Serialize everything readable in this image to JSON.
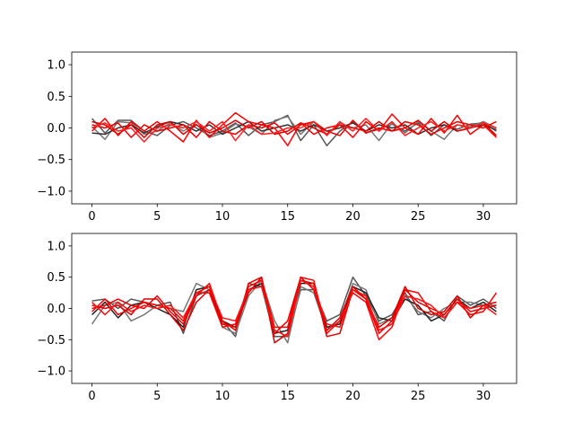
{
  "chart_data": [
    {
      "type": "line",
      "title": "",
      "xlabel": "",
      "ylabel": "",
      "xlim": [
        -1.55,
        32.55
      ],
      "ylim": [
        -1.2,
        1.2
      ],
      "xticks": [
        0,
        5,
        10,
        15,
        20,
        25,
        30
      ],
      "yticks": [
        -1.0,
        -0.5,
        0.0,
        0.5,
        1.0
      ],
      "xtick_labels": [
        "0",
        "5",
        "10",
        "15",
        "20",
        "25",
        "30"
      ],
      "ytick_labels": [
        "−1.0",
        "−0.5",
        "0.0",
        "0.5",
        "1.0"
      ],
      "grid": false,
      "x": [
        0,
        1,
        2,
        3,
        4,
        5,
        6,
        7,
        8,
        9,
        10,
        11,
        12,
        13,
        14,
        15,
        16,
        17,
        18,
        19,
        20,
        21,
        22,
        23,
        24,
        25,
        26,
        27,
        28,
        29,
        30,
        31
      ],
      "series": [
        {
          "color": "#555555",
          "values": [
            0.15,
            -0.08,
            0.12,
            0.12,
            -0.05,
            -0.12,
            0.04,
            0.1,
            0.0,
            -0.12,
            -0.05,
            0.08,
            -0.12,
            0.05,
            0.1,
            0.2,
            -0.2,
            0.05,
            -0.28,
            -0.05,
            0.1,
            -0.08,
            -0.02,
            0.06,
            -0.05,
            0.08,
            -0.12,
            0.05,
            -0.02,
            0.06,
            0.08,
            -0.05
          ]
        },
        {
          "color": "#777777",
          "values": [
            0.02,
            -0.18,
            0.1,
            0.08,
            -0.1,
            -0.05,
            0.08,
            -0.05,
            0.06,
            -0.15,
            -0.08,
            0.06,
            0.02,
            -0.1,
            0.12,
            0.18,
            -0.1,
            0.1,
            -0.1,
            0.08,
            0.0,
            0.05,
            -0.2,
            0.08,
            -0.08,
            0.1,
            -0.05,
            -0.18,
            0.05,
            0.02,
            0.1,
            0.0
          ]
        },
        {
          "color": "#333333",
          "values": [
            -0.08,
            -0.1,
            0.0,
            0.05,
            -0.08,
            0.02,
            0.1,
            0.05,
            -0.05,
            0.05,
            -0.1,
            0.0,
            0.1,
            -0.05,
            0.0,
            0.05,
            -0.05,
            0.05,
            -0.05,
            0.0,
            0.08,
            -0.05,
            0.05,
            0.0,
            0.05,
            -0.1,
            0.0,
            0.05,
            -0.05,
            0.0,
            0.05,
            -0.03
          ]
        },
        {
          "color": "#dd0000",
          "values": [
            0.1,
            0.05,
            -0.1,
            0.05,
            -0.15,
            0.05,
            0.1,
            -0.1,
            0.05,
            -0.08,
            0.0,
            0.12,
            0.0,
            0.1,
            -0.1,
            -0.05,
            0.08,
            0.0,
            -0.1,
            0.05,
            0.0,
            -0.05,
            0.1,
            -0.05,
            0.0,
            0.12,
            -0.05,
            0.1,
            -0.05,
            0.0,
            0.08,
            -0.12
          ]
        },
        {
          "color": "#ff0000",
          "values": [
            -0.05,
            0.15,
            -0.12,
            0.1,
            -0.05,
            0.1,
            -0.05,
            -0.22,
            0.12,
            -0.15,
            0.05,
            0.24,
            0.1,
            0.05,
            0.0,
            -0.28,
            0.08,
            -0.1,
            0.0,
            0.05,
            -0.15,
            0.1,
            -0.05,
            0.22,
            0.0,
            -0.1,
            0.15,
            -0.08,
            0.2,
            -0.1,
            0.05,
            -0.15
          ]
        },
        {
          "color": "#ee0000",
          "values": [
            0.05,
            0.0,
            0.08,
            -0.15,
            0.05,
            -0.05,
            0.0,
            0.05,
            -0.15,
            0.1,
            -0.05,
            -0.1,
            0.05,
            0.0,
            0.08,
            -0.1,
            0.05,
            0.1,
            -0.05,
            -0.12,
            0.12,
            -0.08,
            0.0,
            -0.05,
            0.1,
            0.05,
            -0.1,
            0.0,
            0.1,
            0.05,
            0.0,
            0.1
          ]
        },
        {
          "color": "#ff2020",
          "values": [
            0.0,
            0.08,
            -0.05,
            0.0,
            -0.22,
            0.0,
            0.05,
            0.0,
            0.1,
            -0.05,
            0.1,
            -0.2,
            0.05,
            -0.1,
            -0.08,
            0.0,
            0.0,
            0.1,
            -0.12,
            0.1,
            -0.05,
            0.15,
            -0.05,
            0.1,
            -0.12,
            0.0,
            0.1,
            -0.05,
            0.05,
            0.0,
            0.08,
            0.0
          ]
        }
      ]
    },
    {
      "type": "line",
      "title": "",
      "xlabel": "",
      "ylabel": "",
      "xlim": [
        -1.55,
        32.55
      ],
      "ylim": [
        -1.2,
        1.2
      ],
      "xticks": [
        0,
        5,
        10,
        15,
        20,
        25,
        30
      ],
      "yticks": [
        -1.0,
        -0.5,
        0.0,
        0.5,
        1.0
      ],
      "xtick_labels": [
        "0",
        "5",
        "10",
        "15",
        "20",
        "25",
        "30"
      ],
      "ytick_labels": [
        "−1.0",
        "−0.5",
        "0.0",
        "0.5",
        "1.0"
      ],
      "grid": false,
      "x": [
        0,
        1,
        2,
        3,
        4,
        5,
        6,
        7,
        8,
        9,
        10,
        11,
        12,
        13,
        14,
        15,
        16,
        17,
        18,
        19,
        20,
        21,
        22,
        23,
        24,
        25,
        26,
        27,
        28,
        29,
        30,
        31
      ],
      "series": [
        {
          "color": "#555555",
          "values": [
            0.12,
            0.15,
            0.0,
            0.15,
            0.1,
            0.05,
            0.1,
            -0.4,
            0.2,
            0.3,
            -0.2,
            -0.45,
            0.4,
            0.35,
            -0.45,
            -0.45,
            0.3,
            0.3,
            -0.2,
            -0.1,
            0.5,
            0.2,
            -0.2,
            -0.1,
            0.25,
            -0.1,
            -0.05,
            -0.2,
            0.2,
            0.05,
            0.15,
            0.0
          ]
        },
        {
          "color": "#777777",
          "values": [
            -0.25,
            0.05,
            0.1,
            -0.2,
            -0.1,
            0.05,
            0.0,
            -0.05,
            0.4,
            0.3,
            -0.3,
            -0.4,
            0.2,
            0.45,
            -0.2,
            -0.55,
            0.35,
            0.25,
            -0.35,
            -0.2,
            0.4,
            0.3,
            -0.25,
            -0.15,
            0.2,
            -0.05,
            -0.15,
            0.0,
            0.1,
            0.1,
            0.05,
            0.05
          ]
        },
        {
          "color": "#222222",
          "values": [
            -0.1,
            0.1,
            -0.15,
            0.05,
            0.1,
            0.0,
            -0.1,
            -0.3,
            0.3,
            0.35,
            -0.2,
            -0.3,
            0.3,
            0.4,
            -0.4,
            -0.35,
            0.4,
            0.4,
            -0.3,
            -0.25,
            0.35,
            0.25,
            -0.15,
            -0.2,
            0.15,
            0.05,
            -0.2,
            -0.1,
            0.15,
            0.0,
            0.1,
            -0.05
          ]
        },
        {
          "color": "#dd0000",
          "values": [
            0.05,
            0.0,
            0.05,
            -0.1,
            0.15,
            0.15,
            -0.1,
            -0.35,
            0.1,
            0.3,
            -0.25,
            -0.3,
            0.25,
            0.5,
            -0.55,
            -0.4,
            0.45,
            0.4,
            -0.45,
            -0.4,
            0.3,
            0.15,
            -0.3,
            -0.15,
            0.35,
            0.0,
            -0.1,
            -0.05,
            0.2,
            -0.15,
            0.05,
            0.1
          ]
        },
        {
          "color": "#ff0000",
          "values": [
            -0.05,
            0.15,
            -0.1,
            0.0,
            0.1,
            0.05,
            0.0,
            -0.2,
            0.25,
            0.25,
            -0.3,
            -0.25,
            0.35,
            0.45,
            -0.3,
            -0.3,
            0.5,
            0.45,
            -0.4,
            -0.2,
            0.25,
            0.1,
            -0.5,
            -0.3,
            0.3,
            0.25,
            -0.05,
            -0.15,
            0.1,
            -0.1,
            -0.05,
            0.25
          ]
        },
        {
          "color": "#ee0000",
          "values": [
            0.0,
            0.05,
            0.15,
            0.05,
            0.0,
            0.2,
            -0.05,
            -0.25,
            0.2,
            0.4,
            -0.2,
            -0.35,
            0.4,
            0.5,
            -0.4,
            -0.2,
            0.5,
            0.3,
            -0.35,
            -0.15,
            0.35,
            0.15,
            -0.4,
            -0.2,
            0.3,
            0.1,
            0.0,
            -0.1,
            0.15,
            -0.05,
            0.0,
            0.05
          ]
        },
        {
          "color": "#ff1010",
          "values": [
            0.1,
            -0.1,
            0.1,
            -0.05,
            0.05,
            0.0,
            0.05,
            -0.15,
            0.25,
            0.35,
            -0.15,
            -0.2,
            0.3,
            0.35,
            -0.35,
            -0.45,
            0.45,
            0.35,
            -0.25,
            -0.3,
            0.3,
            0.2,
            -0.35,
            -0.25,
            0.2,
            0.15,
            0.05,
            -0.15,
            0.1,
            0.0,
            0.05,
            -0.1
          ]
        }
      ]
    }
  ]
}
